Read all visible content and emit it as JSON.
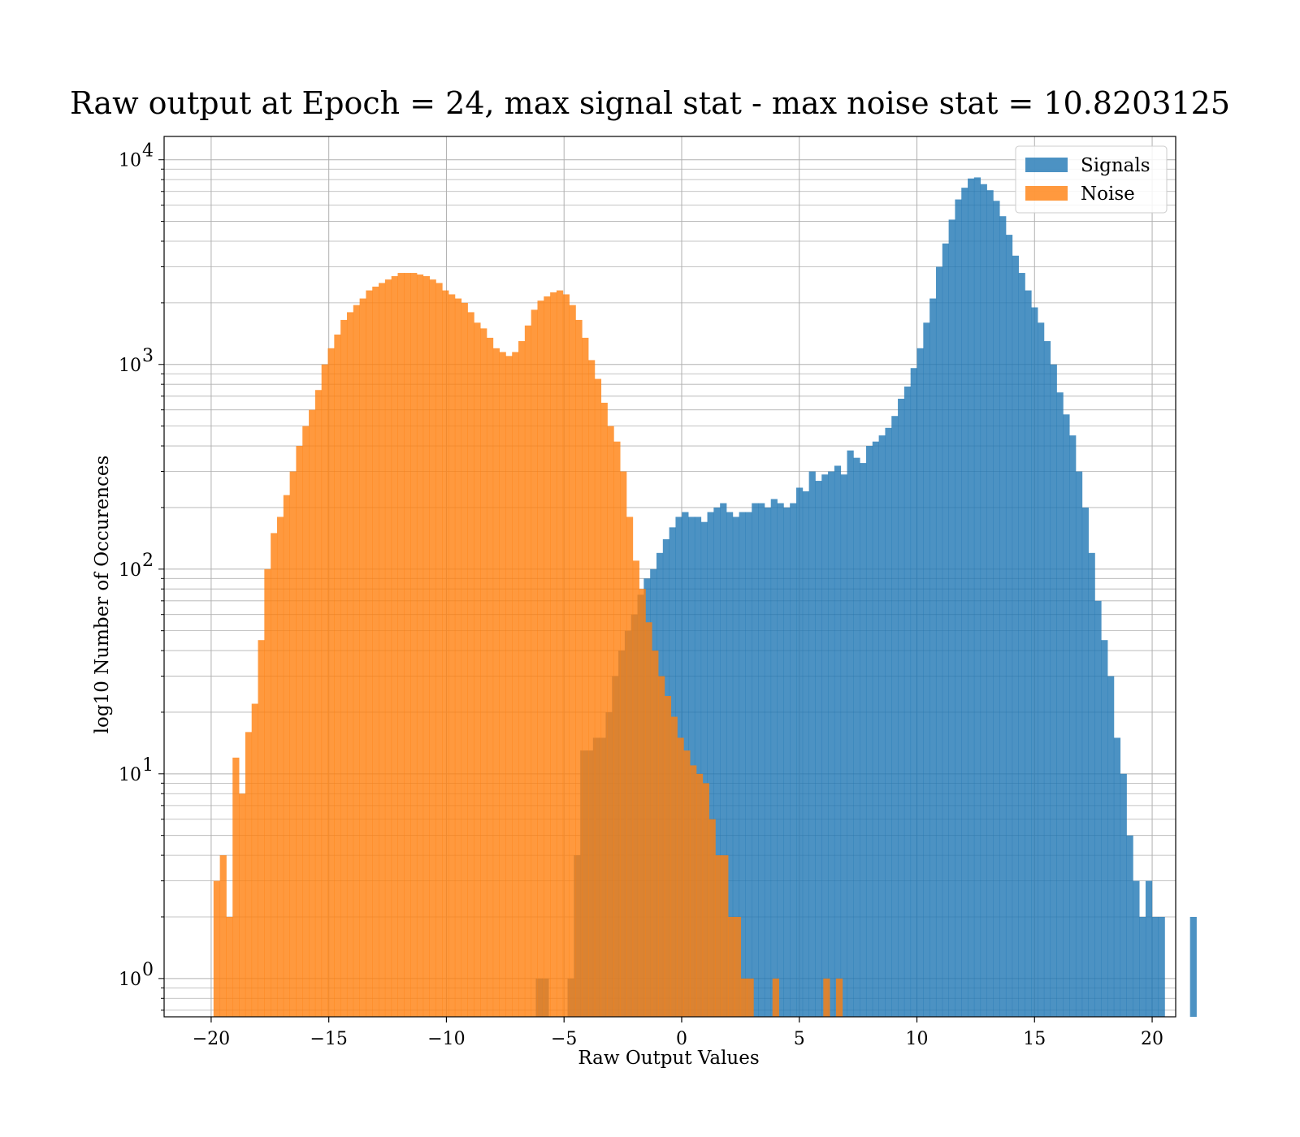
{
  "chart_data": {
    "type": "histogram",
    "title": "Raw output at Epoch = 24, max signal stat - max noise stat = 10.8203125",
    "xlabel": "Raw Output Values",
    "ylabel": "log10 Number of Occurences",
    "xlim": [
      -22,
      21
    ],
    "ylim": [
      0.65,
      13000
    ],
    "yscale": "log",
    "grid": "on",
    "legend_position": "top-right",
    "bin_width": 0.27,
    "xticks": [
      "−20",
      "−15",
      "−10",
      "−5",
      "0",
      "5",
      "10",
      "15",
      "20"
    ],
    "xtick_values": [
      -20,
      -15,
      -10,
      -5,
      0,
      5,
      10,
      15,
      20
    ],
    "yticks": [
      {
        "base": "10",
        "exp": "0",
        "value": 1
      },
      {
        "base": "10",
        "exp": "1",
        "value": 10
      },
      {
        "base": "10",
        "exp": "2",
        "value": 100
      },
      {
        "base": "10",
        "exp": "3",
        "value": 1000
      },
      {
        "base": "10",
        "exp": "4",
        "value": 10000
      }
    ],
    "series": [
      {
        "name": "Signals",
        "color": "#1f77b4",
        "opacity": 0.8,
        "bin_start": -6.2,
        "counts": [
          1,
          1,
          0,
          0,
          0,
          1,
          4,
          13,
          13,
          15,
          15,
          20,
          30,
          40,
          50,
          60,
          75,
          90,
          100,
          120,
          140,
          160,
          180,
          190,
          180,
          180,
          170,
          190,
          200,
          210,
          190,
          180,
          190,
          190,
          210,
          210,
          200,
          220,
          210,
          200,
          210,
          250,
          240,
          300,
          270,
          290,
          300,
          320,
          290,
          380,
          350,
          330,
          400,
          420,
          450,
          490,
          560,
          680,
          780,
          960,
          1200,
          1600,
          2100,
          3000,
          3900,
          5100,
          6400,
          7300,
          8100,
          8200,
          7600,
          7100,
          6300,
          5300,
          4300,
          3400,
          2800,
          2300,
          1900,
          1600,
          1300,
          1000,
          730,
          570,
          450,
          300,
          200,
          120,
          70,
          45,
          30,
          15,
          10,
          5,
          3,
          2,
          3,
          2,
          2,
          0,
          0,
          0,
          0,
          2
        ]
      },
      {
        "name": "Noise",
        "color": "#ff7f0e",
        "opacity": 0.8,
        "bin_start": -19.9,
        "counts": [
          3,
          4,
          2,
          12,
          8,
          16,
          22,
          45,
          100,
          150,
          180,
          230,
          300,
          400,
          500,
          600,
          750,
          1000,
          1200,
          1400,
          1650,
          1800,
          1950,
          2100,
          2300,
          2400,
          2500,
          2600,
          2700,
          2800,
          2800,
          2800,
          2750,
          2700,
          2600,
          2500,
          2300,
          2200,
          2100,
          2000,
          1800,
          1600,
          1500,
          1350,
          1200,
          1150,
          1100,
          1150,
          1300,
          1550,
          1850,
          2050,
          2150,
          2250,
          2300,
          2200,
          1950,
          1650,
          1350,
          1050,
          850,
          650,
          500,
          420,
          300,
          180,
          110,
          80,
          55,
          40,
          30,
          24,
          19,
          15,
          13,
          11,
          10,
          9,
          6,
          4,
          4,
          2,
          2,
          1,
          1,
          0,
          0,
          0,
          1,
          0,
          0,
          0,
          0,
          0,
          0,
          0,
          1,
          0,
          1,
          0,
          0,
          0
        ]
      }
    ],
    "legend": [
      {
        "label": "Signals",
        "color": "#1f77b4"
      },
      {
        "label": "Noise",
        "color": "#ff7f0e"
      }
    ]
  }
}
